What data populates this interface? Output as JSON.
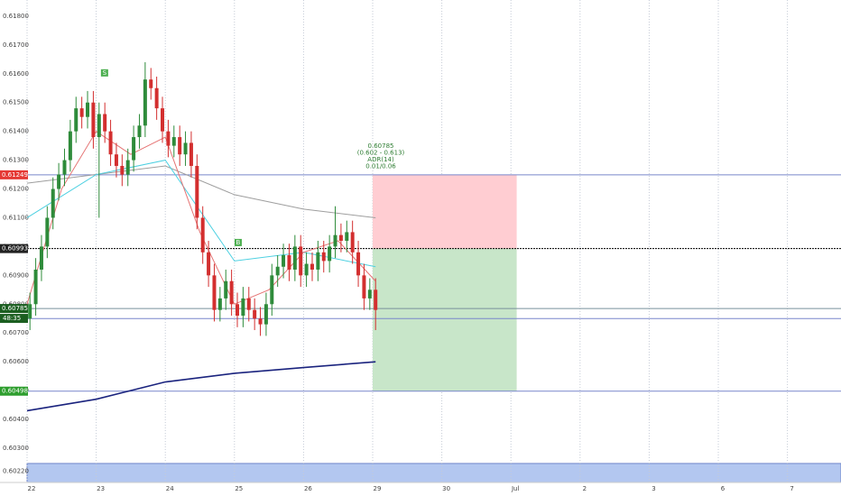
{
  "chart_data": {
    "type": "candlestick",
    "xlim": [
      0,
      282.6
    ],
    "ylim": [
      0.60181,
      0.61856
    ],
    "xticks": [
      {
        "value": 0,
        "label": "22"
      },
      {
        "value": 24,
        "label": "23"
      },
      {
        "value": 48,
        "label": "24"
      },
      {
        "value": 72,
        "label": "25"
      },
      {
        "value": 96,
        "label": "26"
      },
      {
        "value": 120,
        "label": "29"
      },
      {
        "value": 144,
        "label": "30"
      },
      {
        "value": 168,
        "label": "Jul"
      },
      {
        "value": 192,
        "label": "2"
      },
      {
        "value": 216,
        "label": "3"
      },
      {
        "value": 240,
        "label": "6"
      },
      {
        "value": 264,
        "label": "7"
      }
    ],
    "yticks": [
      {
        "value": 0.618,
        "label": "0.61800"
      },
      {
        "value": 0.617,
        "label": "0.61700"
      },
      {
        "value": 0.616,
        "label": "0.61600"
      },
      {
        "value": 0.615,
        "label": "0.61500"
      },
      {
        "value": 0.614,
        "label": "0.61400"
      },
      {
        "value": 0.613,
        "label": "0.61300"
      },
      {
        "value": 0.612,
        "label": "0.61200"
      },
      {
        "value": 0.611,
        "label": "0.61100"
      },
      {
        "value": 0.61,
        "label": "0.61000"
      },
      {
        "value": 0.609,
        "label": "0.60900"
      },
      {
        "value": 0.608,
        "label": "0.60800"
      },
      {
        "value": 0.607,
        "label": "0.60700"
      },
      {
        "value": 0.606,
        "label": "0.60600"
      },
      {
        "value": 0.605,
        "label": "0.60500"
      },
      {
        "value": 0.604,
        "label": "0.60400"
      },
      {
        "value": 0.603,
        "label": "0.60300"
      },
      {
        "value": 0.6022,
        "label": "0.60220"
      }
    ],
    "candles": {
      "up_color": "#2e8b3a",
      "down_color": "#d32f2f",
      "x": [
        1,
        3,
        5,
        7,
        9,
        11,
        13,
        15,
        17,
        19,
        21,
        23,
        25,
        27,
        29,
        31,
        33,
        35,
        37,
        39,
        41,
        43,
        45,
        47,
        49,
        51,
        53,
        55,
        57,
        59,
        61,
        63,
        65,
        67,
        69,
        71,
        73,
        75,
        77,
        79,
        81,
        83,
        85,
        87,
        89,
        91,
        93,
        95,
        97,
        99,
        101,
        103,
        105,
        107,
        109,
        111,
        113,
        115,
        117,
        119,
        121
      ],
      "open": [
        0.6075,
        0.608,
        0.6092,
        0.61,
        0.611,
        0.612,
        0.6125,
        0.613,
        0.614,
        0.6148,
        0.6145,
        0.615,
        0.6138,
        0.6146,
        0.614,
        0.6132,
        0.6128,
        0.6125,
        0.613,
        0.6138,
        0.6142,
        0.6158,
        0.6155,
        0.6148,
        0.614,
        0.6135,
        0.6138,
        0.6132,
        0.6136,
        0.6128,
        0.611,
        0.6098,
        0.609,
        0.6078,
        0.6082,
        0.6088,
        0.608,
        0.6076,
        0.6082,
        0.6078,
        0.6075,
        0.6073,
        0.608,
        0.609,
        0.6093,
        0.6097,
        0.6092,
        0.61,
        0.609,
        0.6094,
        0.6092,
        0.6098,
        0.6095,
        0.61,
        0.6104,
        0.6102,
        0.6105,
        0.6098,
        0.609,
        0.6082,
        0.6085
      ],
      "high": [
        0.6084,
        0.6096,
        0.6104,
        0.6114,
        0.6124,
        0.6129,
        0.6134,
        0.6144,
        0.6152,
        0.6152,
        0.6154,
        0.6154,
        0.615,
        0.615,
        0.6144,
        0.6136,
        0.6132,
        0.6134,
        0.6142,
        0.6146,
        0.6164,
        0.6162,
        0.6159,
        0.6152,
        0.6144,
        0.6142,
        0.6142,
        0.614,
        0.614,
        0.6132,
        0.6114,
        0.6102,
        0.6094,
        0.6086,
        0.6092,
        0.6092,
        0.6084,
        0.6086,
        0.6086,
        0.6082,
        0.6079,
        0.6084,
        0.6094,
        0.6097,
        0.6101,
        0.6101,
        0.6104,
        0.6104,
        0.6098,
        0.6098,
        0.6102,
        0.6102,
        0.6104,
        0.6114,
        0.6108,
        0.6109,
        0.6109,
        0.6102,
        0.6094,
        0.6089,
        0.6089
      ],
      "low": [
        0.6071,
        0.6076,
        0.6088,
        0.6096,
        0.6106,
        0.6116,
        0.6121,
        0.6126,
        0.6136,
        0.6141,
        0.6141,
        0.6134,
        0.611,
        0.6136,
        0.6128,
        0.6124,
        0.6121,
        0.6121,
        0.6126,
        0.6134,
        0.6138,
        0.6151,
        0.6144,
        0.6136,
        0.6131,
        0.6131,
        0.6128,
        0.6128,
        0.6124,
        0.6106,
        0.6094,
        0.6086,
        0.6074,
        0.6074,
        0.6078,
        0.6076,
        0.6072,
        0.6072,
        0.6074,
        0.6071,
        0.6069,
        0.6069,
        0.6076,
        0.6086,
        0.6089,
        0.6088,
        0.6088,
        0.6086,
        0.6086,
        0.6088,
        0.6088,
        0.6091,
        0.6091,
        0.6096,
        0.6098,
        0.6098,
        0.6094,
        0.6086,
        0.6078,
        0.6078,
        0.6071
      ],
      "close": [
        0.608,
        0.6092,
        0.61,
        0.611,
        0.612,
        0.6125,
        0.613,
        0.614,
        0.6148,
        0.6145,
        0.615,
        0.6138,
        0.6146,
        0.614,
        0.6132,
        0.6128,
        0.6125,
        0.613,
        0.6138,
        0.6142,
        0.6158,
        0.6155,
        0.6148,
        0.614,
        0.6135,
        0.6138,
        0.6132,
        0.6136,
        0.6128,
        0.611,
        0.6098,
        0.609,
        0.6078,
        0.6082,
        0.6088,
        0.608,
        0.6076,
        0.6082,
        0.6078,
        0.6075,
        0.6073,
        0.608,
        0.609,
        0.6093,
        0.6097,
        0.6092,
        0.61,
        0.609,
        0.6094,
        0.6092,
        0.6098,
        0.6095,
        0.61,
        0.6104,
        0.6102,
        0.6105,
        0.6098,
        0.609,
        0.6082,
        0.6085,
        0.6078
      ]
    },
    "series": [
      {
        "color": "#1a237e",
        "x": [
          0,
          24,
          48,
          72,
          96,
          121
        ],
        "values": [
          0.6043,
          0.6047,
          0.6053,
          0.6056,
          0.6058,
          0.606
        ]
      },
      {
        "color": "#9e9e9e",
        "x": [
          0,
          24,
          48,
          72,
          96,
          121
        ],
        "values": [
          0.6122,
          0.6125,
          0.6128,
          0.6118,
          0.6113,
          0.611
        ]
      },
      {
        "color": "#4dd0e1",
        "x": [
          0,
          24,
          48,
          72,
          96,
          121
        ],
        "values": [
          0.611,
          0.6125,
          0.613,
          0.6095,
          0.6098,
          0.6093
        ]
      },
      {
        "color": "#e57373",
        "x": [
          0,
          12,
          24,
          36,
          48,
          60,
          72,
          84,
          96,
          108,
          121
        ],
        "values": [
          0.608,
          0.612,
          0.614,
          0.6132,
          0.6138,
          0.6105,
          0.608,
          0.6085,
          0.6098,
          0.6102,
          0.6088
        ]
      }
    ],
    "hlines": [
      {
        "value": 0.61249,
        "label": "0.61249",
        "color": "#e53935",
        "line": "#7986cb"
      },
      {
        "value": 0.60993,
        "label": "0.60993",
        "color": "#222222",
        "line": "#000000"
      },
      {
        "value": 0.60785,
        "label": "0.60785",
        "color": "#1b5e20",
        "line": "#78909c"
      },
      {
        "value": 0.6075,
        "line": "#7986cb"
      },
      {
        "value": 0.60498,
        "label": "0.60498",
        "color": "#2e9e2e",
        "line": "#7986cb"
      }
    ],
    "countdown": "48:35",
    "position": {
      "x0": 120,
      "x1": 170,
      "stop": 0.61249,
      "entry": 0.60993,
      "target": 0.60498,
      "stop_color": "#ffcdd2",
      "target_color": "#c8e6c9"
    },
    "annotation": [
      "0.60785",
      "(0.602 - 0.613)",
      "ADR(14)",
      "0.01/0.06"
    ],
    "band": [
      0.60181,
      0.60247
    ],
    "markers": [
      {
        "x": 26.9,
        "y": 0.61603,
        "text": "S"
      },
      {
        "x": 73.3,
        "y": 0.61014,
        "text": "B"
      }
    ]
  }
}
